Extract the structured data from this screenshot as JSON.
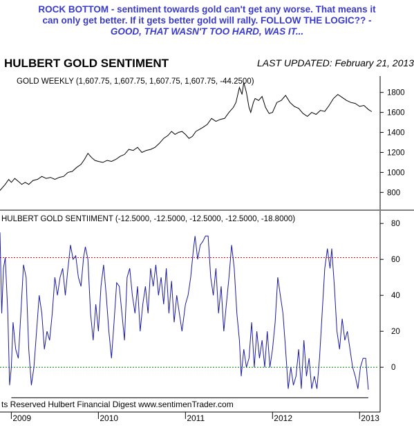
{
  "annotation": {
    "line1": "ROCK BOTTOM - sentiment towards gold can't get any worse. That means it",
    "line2": "can only get better. If it gets better gold will rally. FOLLOW THE LOGIC?? -",
    "line3": "GOOD, THAT WASN'T TOO HARD, WAS IT..."
  },
  "colors": {
    "annotation_text": "#3a3ac8",
    "title_text": "#3a3ac8",
    "gold_line": "#000000",
    "sentiment_line": "#1a1aa0",
    "upper_reference": "#cc0000",
    "zero_reference": "#008000",
    "support_line": "#000000"
  },
  "chart_data": [
    {
      "type": "line",
      "title": "HULBERT GOLD SENTIMENT",
      "last_updated": "LAST UPDATED:  February 21, 2013",
      "legend": "GOLD WEEKLY (1,607.75, 1,607.75, 1,607.75, 1,607.75, -44.2500)",
      "y_axis_side": "right",
      "ylim": [
        650,
        1950
      ],
      "y_ticks": [
        800,
        1000,
        1200,
        1400,
        1600,
        1800
      ],
      "grid": false,
      "series": [
        {
          "points": [
            [
              2008.87,
              820
            ],
            [
              2008.93,
              880
            ],
            [
              2008.97,
              930
            ],
            [
              2009.0,
              900
            ],
            [
              2009.04,
              940
            ],
            [
              2009.08,
              910
            ],
            [
              2009.12,
              880
            ],
            [
              2009.16,
              900
            ],
            [
              2009.2,
              880
            ],
            [
              2009.25,
              920
            ],
            [
              2009.3,
              930
            ],
            [
              2009.35,
              960
            ],
            [
              2009.4,
              940
            ],
            [
              2009.45,
              950
            ],
            [
              2009.5,
              930
            ],
            [
              2009.55,
              950
            ],
            [
              2009.6,
              960
            ],
            [
              2009.65,
              1000
            ],
            [
              2009.7,
              1010
            ],
            [
              2009.75,
              1050
            ],
            [
              2009.8,
              1080
            ],
            [
              2009.84,
              1130
            ],
            [
              2009.88,
              1190
            ],
            [
              2009.92,
              1150
            ],
            [
              2009.96,
              1120
            ],
            [
              2010.0,
              1110
            ],
            [
              2010.05,
              1100
            ],
            [
              2010.1,
              1120
            ],
            [
              2010.15,
              1110
            ],
            [
              2010.2,
              1130
            ],
            [
              2010.25,
              1160
            ],
            [
              2010.3,
              1180
            ],
            [
              2010.35,
              1230
            ],
            [
              2010.4,
              1220
            ],
            [
              2010.45,
              1250
            ],
            [
              2010.5,
              1200
            ],
            [
              2010.55,
              1220
            ],
            [
              2010.6,
              1230
            ],
            [
              2010.65,
              1250
            ],
            [
              2010.7,
              1290
            ],
            [
              2010.75,
              1340
            ],
            [
              2010.8,
              1370
            ],
            [
              2010.84,
              1410
            ],
            [
              2010.88,
              1380
            ],
            [
              2010.92,
              1400
            ],
            [
              2010.96,
              1410
            ],
            [
              2011.0,
              1380
            ],
            [
              2011.04,
              1340
            ],
            [
              2011.08,
              1360
            ],
            [
              2011.12,
              1410
            ],
            [
              2011.16,
              1430
            ],
            [
              2011.2,
              1450
            ],
            [
              2011.25,
              1480
            ],
            [
              2011.3,
              1540
            ],
            [
              2011.35,
              1510
            ],
            [
              2011.4,
              1530
            ],
            [
              2011.45,
              1540
            ],
            [
              2011.5,
              1600
            ],
            [
              2011.55,
              1650
            ],
            [
              2011.58,
              1700
            ],
            [
              2011.62,
              1850
            ],
            [
              2011.65,
              1780
            ],
            [
              2011.67,
              1900
            ],
            [
              2011.7,
              1800
            ],
            [
              2011.73,
              1650
            ],
            [
              2011.75,
              1600
            ],
            [
              2011.78,
              1700
            ],
            [
              2011.8,
              1740
            ],
            [
              2011.84,
              1720
            ],
            [
              2011.88,
              1760
            ],
            [
              2011.92,
              1650
            ],
            [
              2011.96,
              1590
            ],
            [
              2012.0,
              1600
            ],
            [
              2012.05,
              1700
            ],
            [
              2012.1,
              1720
            ],
            [
              2012.15,
              1770
            ],
            [
              2012.2,
              1700
            ],
            [
              2012.25,
              1660
            ],
            [
              2012.3,
              1640
            ],
            [
              2012.35,
              1590
            ],
            [
              2012.4,
              1560
            ],
            [
              2012.45,
              1600
            ],
            [
              2012.5,
              1580
            ],
            [
              2012.55,
              1620
            ],
            [
              2012.6,
              1610
            ],
            [
              2012.65,
              1670
            ],
            [
              2012.7,
              1740
            ],
            [
              2012.75,
              1780
            ],
            [
              2012.8,
              1750
            ],
            [
              2012.85,
              1720
            ],
            [
              2012.9,
              1700
            ],
            [
              2012.95,
              1690
            ],
            [
              2013.0,
              1660
            ],
            [
              2013.05,
              1670
            ],
            [
              2013.1,
              1630
            ],
            [
              2013.14,
              1607.75
            ]
          ]
        }
      ]
    },
    {
      "type": "line",
      "legend": "HULBERT GOLD SENTIIMENT (-12.5000, -12.5000, -12.5000, -12.5000, -18.8000)",
      "y_axis_side": "right",
      "ylim": [
        -18,
        82
      ],
      "y_ticks": [
        0,
        20,
        40,
        60,
        80
      ],
      "x_tick_labels": [
        "2009",
        "2010",
        "2011",
        "2012",
        "2013"
      ],
      "x_ticks": [
        2009,
        2010,
        2011,
        2012,
        2013
      ],
      "xlim": [
        2008.87,
        2013.22
      ],
      "reference_lines": [
        {
          "y": 61,
          "style": "dotted",
          "color_key": "upper_reference"
        },
        {
          "y": 0,
          "style": "dotted",
          "color_key": "zero_reference"
        },
        {
          "y": -17,
          "style": "solid",
          "color_key": "support_line",
          "x_start": 2009.0,
          "x_end": 2013.1
        }
      ],
      "footer": "ts Reserved  Hulbert Financial Digest  www.sentimenTrader.com",
      "series": [
        {
          "points": [
            [
              2008.87,
              75
            ],
            [
              2008.89,
              30
            ],
            [
              2008.91,
              55
            ],
            [
              2008.93,
              61
            ],
            [
              2008.96,
              30
            ],
            [
              2008.98,
              -10
            ],
            [
              2009.0,
              0
            ],
            [
              2009.02,
              25
            ],
            [
              2009.05,
              10
            ],
            [
              2009.08,
              5
            ],
            [
              2009.11,
              30
            ],
            [
              2009.14,
              57
            ],
            [
              2009.17,
              50
            ],
            [
              2009.2,
              10
            ],
            [
              2009.23,
              -10
            ],
            [
              2009.26,
              0
            ],
            [
              2009.29,
              20
            ],
            [
              2009.32,
              40
            ],
            [
              2009.35,
              30
            ],
            [
              2009.38,
              10
            ],
            [
              2009.41,
              20
            ],
            [
              2009.44,
              15
            ],
            [
              2009.47,
              30
            ],
            [
              2009.5,
              50
            ],
            [
              2009.53,
              40
            ],
            [
              2009.56,
              50
            ],
            [
              2009.59,
              55
            ],
            [
              2009.62,
              40
            ],
            [
              2009.65,
              55
            ],
            [
              2009.68,
              68
            ],
            [
              2009.71,
              60
            ],
            [
              2009.74,
              62
            ],
            [
              2009.77,
              50
            ],
            [
              2009.8,
              45
            ],
            [
              2009.83,
              61
            ],
            [
              2009.85,
              67
            ],
            [
              2009.88,
              60
            ],
            [
              2009.91,
              30
            ],
            [
              2009.94,
              15
            ],
            [
              2009.97,
              35
            ],
            [
              2010.0,
              20
            ],
            [
              2010.03,
              45
            ],
            [
              2010.06,
              57
            ],
            [
              2010.09,
              40
            ],
            [
              2010.12,
              20
            ],
            [
              2010.15,
              5
            ],
            [
              2010.18,
              25
            ],
            [
              2010.21,
              47
            ],
            [
              2010.24,
              45
            ],
            [
              2010.27,
              30
            ],
            [
              2010.3,
              15
            ],
            [
              2010.33,
              50
            ],
            [
              2010.36,
              55
            ],
            [
              2010.39,
              40
            ],
            [
              2010.42,
              30
            ],
            [
              2010.45,
              45
            ],
            [
              2010.48,
              20
            ],
            [
              2010.51,
              35
            ],
            [
              2010.54,
              45
            ],
            [
              2010.57,
              30
            ],
            [
              2010.6,
              55
            ],
            [
              2010.63,
              45
            ],
            [
              2010.66,
              57
            ],
            [
              2010.69,
              40
            ],
            [
              2010.72,
              50
            ],
            [
              2010.75,
              35
            ],
            [
              2010.78,
              55
            ],
            [
              2010.81,
              30
            ],
            [
              2010.84,
              48
            ],
            [
              2010.87,
              25
            ],
            [
              2010.9,
              40
            ],
            [
              2010.93,
              30
            ],
            [
              2010.96,
              20
            ],
            [
              2011.0,
              35
            ],
            [
              2011.03,
              40
            ],
            [
              2011.06,
              50
            ],
            [
              2011.09,
              65
            ],
            [
              2011.11,
              73
            ],
            [
              2011.14,
              60
            ],
            [
              2011.17,
              68
            ],
            [
              2011.2,
              70
            ],
            [
              2011.23,
              73
            ],
            [
              2011.26,
              73
            ],
            [
              2011.29,
              50
            ],
            [
              2011.32,
              40
            ],
            [
              2011.35,
              55
            ],
            [
              2011.38,
              30
            ],
            [
              2011.41,
              45
            ],
            [
              2011.44,
              20
            ],
            [
              2011.47,
              35
            ],
            [
              2011.5,
              50
            ],
            [
              2011.53,
              68
            ],
            [
              2011.56,
              55
            ],
            [
              2011.59,
              30
            ],
            [
              2011.62,
              15
            ],
            [
              2011.64,
              -5
            ],
            [
              2011.67,
              10
            ],
            [
              2011.7,
              0
            ],
            [
              2011.73,
              5
            ],
            [
              2011.76,
              25
            ],
            [
              2011.79,
              0
            ],
            [
              2011.82,
              20
            ],
            [
              2011.85,
              5
            ],
            [
              2011.88,
              15
            ],
            [
              2011.91,
              0
            ],
            [
              2011.94,
              20
            ],
            [
              2011.97,
              0
            ],
            [
              2012.0,
              10
            ],
            [
              2012.03,
              25
            ],
            [
              2012.06,
              50
            ],
            [
              2012.09,
              40
            ],
            [
              2012.12,
              30
            ],
            [
              2012.15,
              10
            ],
            [
              2012.18,
              -12
            ],
            [
              2012.21,
              0
            ],
            [
              2012.24,
              -10
            ],
            [
              2012.27,
              -5
            ],
            [
              2012.3,
              10
            ],
            [
              2012.33,
              -12
            ],
            [
              2012.36,
              15
            ],
            [
              2012.39,
              -5
            ],
            [
              2012.42,
              5
            ],
            [
              2012.45,
              -12
            ],
            [
              2012.48,
              -5
            ],
            [
              2012.51,
              -12
            ],
            [
              2012.54,
              5
            ],
            [
              2012.57,
              30
            ],
            [
              2012.6,
              55
            ],
            [
              2012.63,
              66
            ],
            [
              2012.66,
              55
            ],
            [
              2012.68,
              66
            ],
            [
              2012.71,
              45
            ],
            [
              2012.74,
              20
            ],
            [
              2012.77,
              10
            ],
            [
              2012.8,
              27
            ],
            [
              2012.83,
              15
            ],
            [
              2012.86,
              20
            ],
            [
              2012.89,
              10
            ],
            [
              2012.92,
              0
            ],
            [
              2012.95,
              -5
            ],
            [
              2012.98,
              -12
            ],
            [
              2013.01,
              0
            ],
            [
              2013.04,
              5
            ],
            [
              2013.07,
              5
            ],
            [
              2013.1,
              -12.5
            ]
          ]
        }
      ]
    }
  ]
}
